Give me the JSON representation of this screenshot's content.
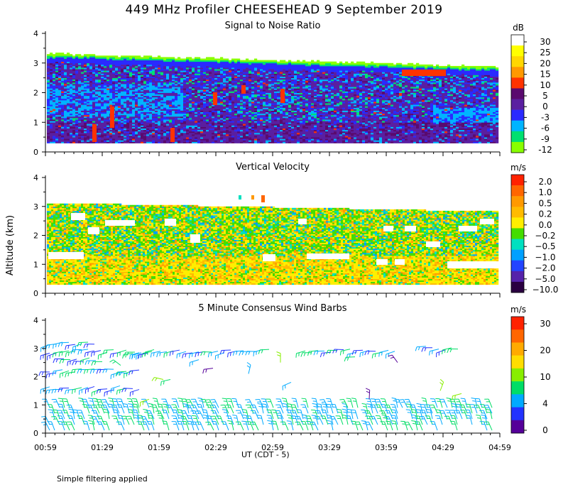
{
  "title": "449 MHz Profiler CHEESEHEAD  9 September 2019",
  "y_axis_label": "Altitude (km)",
  "x_axis_label": "UT  (CDT - 5)",
  "footnote": "Simple filtering applied",
  "chart_data": [
    {
      "type": "heatmap",
      "title": "Signal to Noise Ratio",
      "units": "dB",
      "ylim": [
        0,
        4
      ],
      "y_ticks": [
        0,
        1,
        2,
        3,
        4
      ],
      "x_ticks": [
        "00:59",
        "01:29",
        "01:59",
        "02:29",
        "02:59",
        "03:29",
        "03:59",
        "04:29",
        "04:59"
      ],
      "colorbar_labels": [
        "30",
        "25",
        "20",
        "15",
        "10",
        "5",
        "0",
        "-3",
        "-6",
        "-9",
        "-12"
      ],
      "colors": [
        "#ffffff",
        "#ffff00",
        "#ffd700",
        "#ff9900",
        "#ff3300",
        "#5a0a6e",
        "#5a1fa0",
        "#2a2aff",
        "#00b4ff",
        "#00e070",
        "#88ff00"
      ]
    },
    {
      "type": "heatmap",
      "title": "Vertical Velocity",
      "units": "m/s",
      "ylim": [
        0,
        4
      ],
      "y_ticks": [
        0,
        1,
        2,
        3,
        4
      ],
      "x_ticks": [
        "00:59",
        "01:29",
        "01:59",
        "02:29",
        "02:59",
        "03:29",
        "03:59",
        "04:29",
        "04:59"
      ],
      "colorbar_labels": [
        "2.0",
        "1.0",
        "0.5",
        "0.2",
        "0.0",
        "−0.2",
        "−0.5",
        "−1.0",
        "−2.0",
        "−5.0",
        "−10.0"
      ],
      "colors": [
        "#ff2200",
        "#ff6600",
        "#ff9900",
        "#ffbb00",
        "#ffee00",
        "#44dd00",
        "#00e0c0",
        "#00a0ff",
        "#2244ff",
        "#5522aa",
        "#2a0040"
      ]
    },
    {
      "type": "wind-barbs",
      "title": "5 Minute Consensus Wind Barbs",
      "units": "m/s",
      "ylim": [
        0,
        4
      ],
      "y_ticks": [
        0,
        1,
        2,
        3,
        4
      ],
      "x_ticks": [
        "00:59",
        "01:29",
        "01:59",
        "02:29",
        "02:59",
        "03:29",
        "03:59",
        "04:29",
        "04:59"
      ],
      "colorbar_labels": [
        "30",
        "20",
        "10",
        "4",
        "0"
      ],
      "colors": [
        "#ff2200",
        "#ff6600",
        "#ffaa00",
        "#ffdd00",
        "#88ee00",
        "#00dd66",
        "#00aaff",
        "#2233ff",
        "#550099"
      ]
    }
  ]
}
